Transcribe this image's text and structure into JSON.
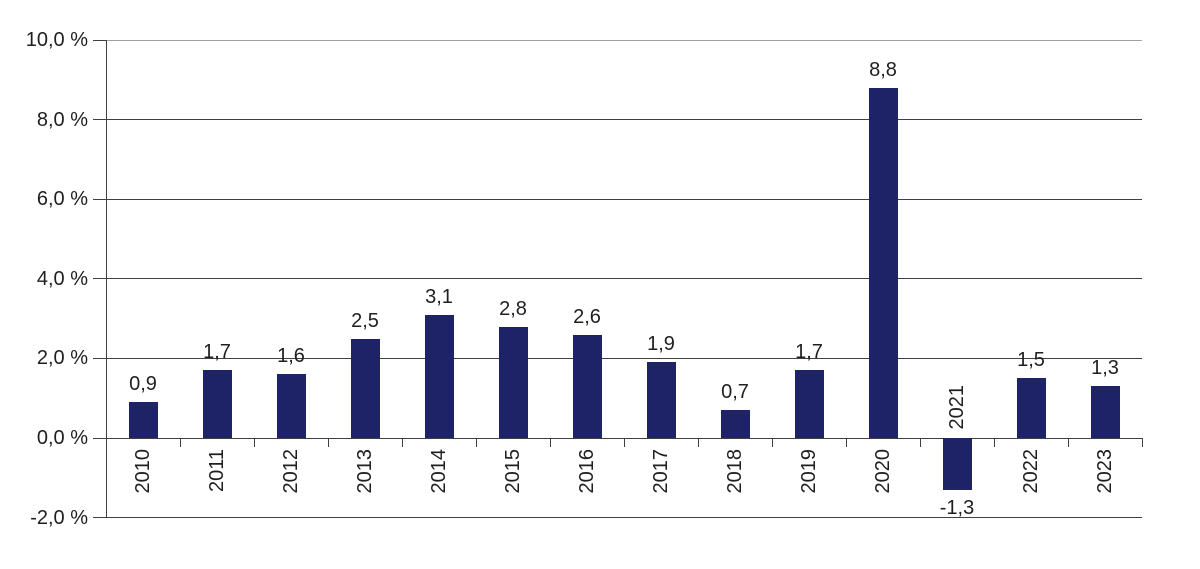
{
  "chart_data": {
    "type": "bar",
    "title": "",
    "xlabel": "",
    "ylabel": "",
    "categories": [
      "2010",
      "2011",
      "2012",
      "2013",
      "2014",
      "2015",
      "2016",
      "2017",
      "2018",
      "2019",
      "2020",
      "2021",
      "2022",
      "2023"
    ],
    "values": [
      0.9,
      1.7,
      1.6,
      2.5,
      3.1,
      2.8,
      2.6,
      1.9,
      0.7,
      1.7,
      8.8,
      -1.3,
      1.5,
      1.3
    ],
    "data_labels": [
      "0,9",
      "1,7",
      "1,6",
      "2,5",
      "3,1",
      "2,8",
      "2,6",
      "1,9",
      "0,7",
      "1,7",
      "8,8",
      "-1,3",
      "1,5",
      "1,3"
    ],
    "y_ticks": [
      {
        "value": 10,
        "label": "10,0 %"
      },
      {
        "value": 8,
        "label": "8,0 %"
      },
      {
        "value": 6,
        "label": "6,0 %"
      },
      {
        "value": 4,
        "label": "4,0 %"
      },
      {
        "value": 2,
        "label": "2,0 %"
      },
      {
        "value": 0,
        "label": "0,0 %"
      },
      {
        "value": -2,
        "label": "-2,0 %"
      }
    ],
    "ylim": [
      -2,
      10
    ],
    "grid": "horizontal",
    "legend_position": "none",
    "decimal_separator": ",",
    "colors": {
      "bar": "#1e2266",
      "gridline": "#404040",
      "top_gridline": "#a0a0a0",
      "axis": "#404040",
      "label": "#1f1f1f",
      "background": "#ffffff"
    }
  }
}
